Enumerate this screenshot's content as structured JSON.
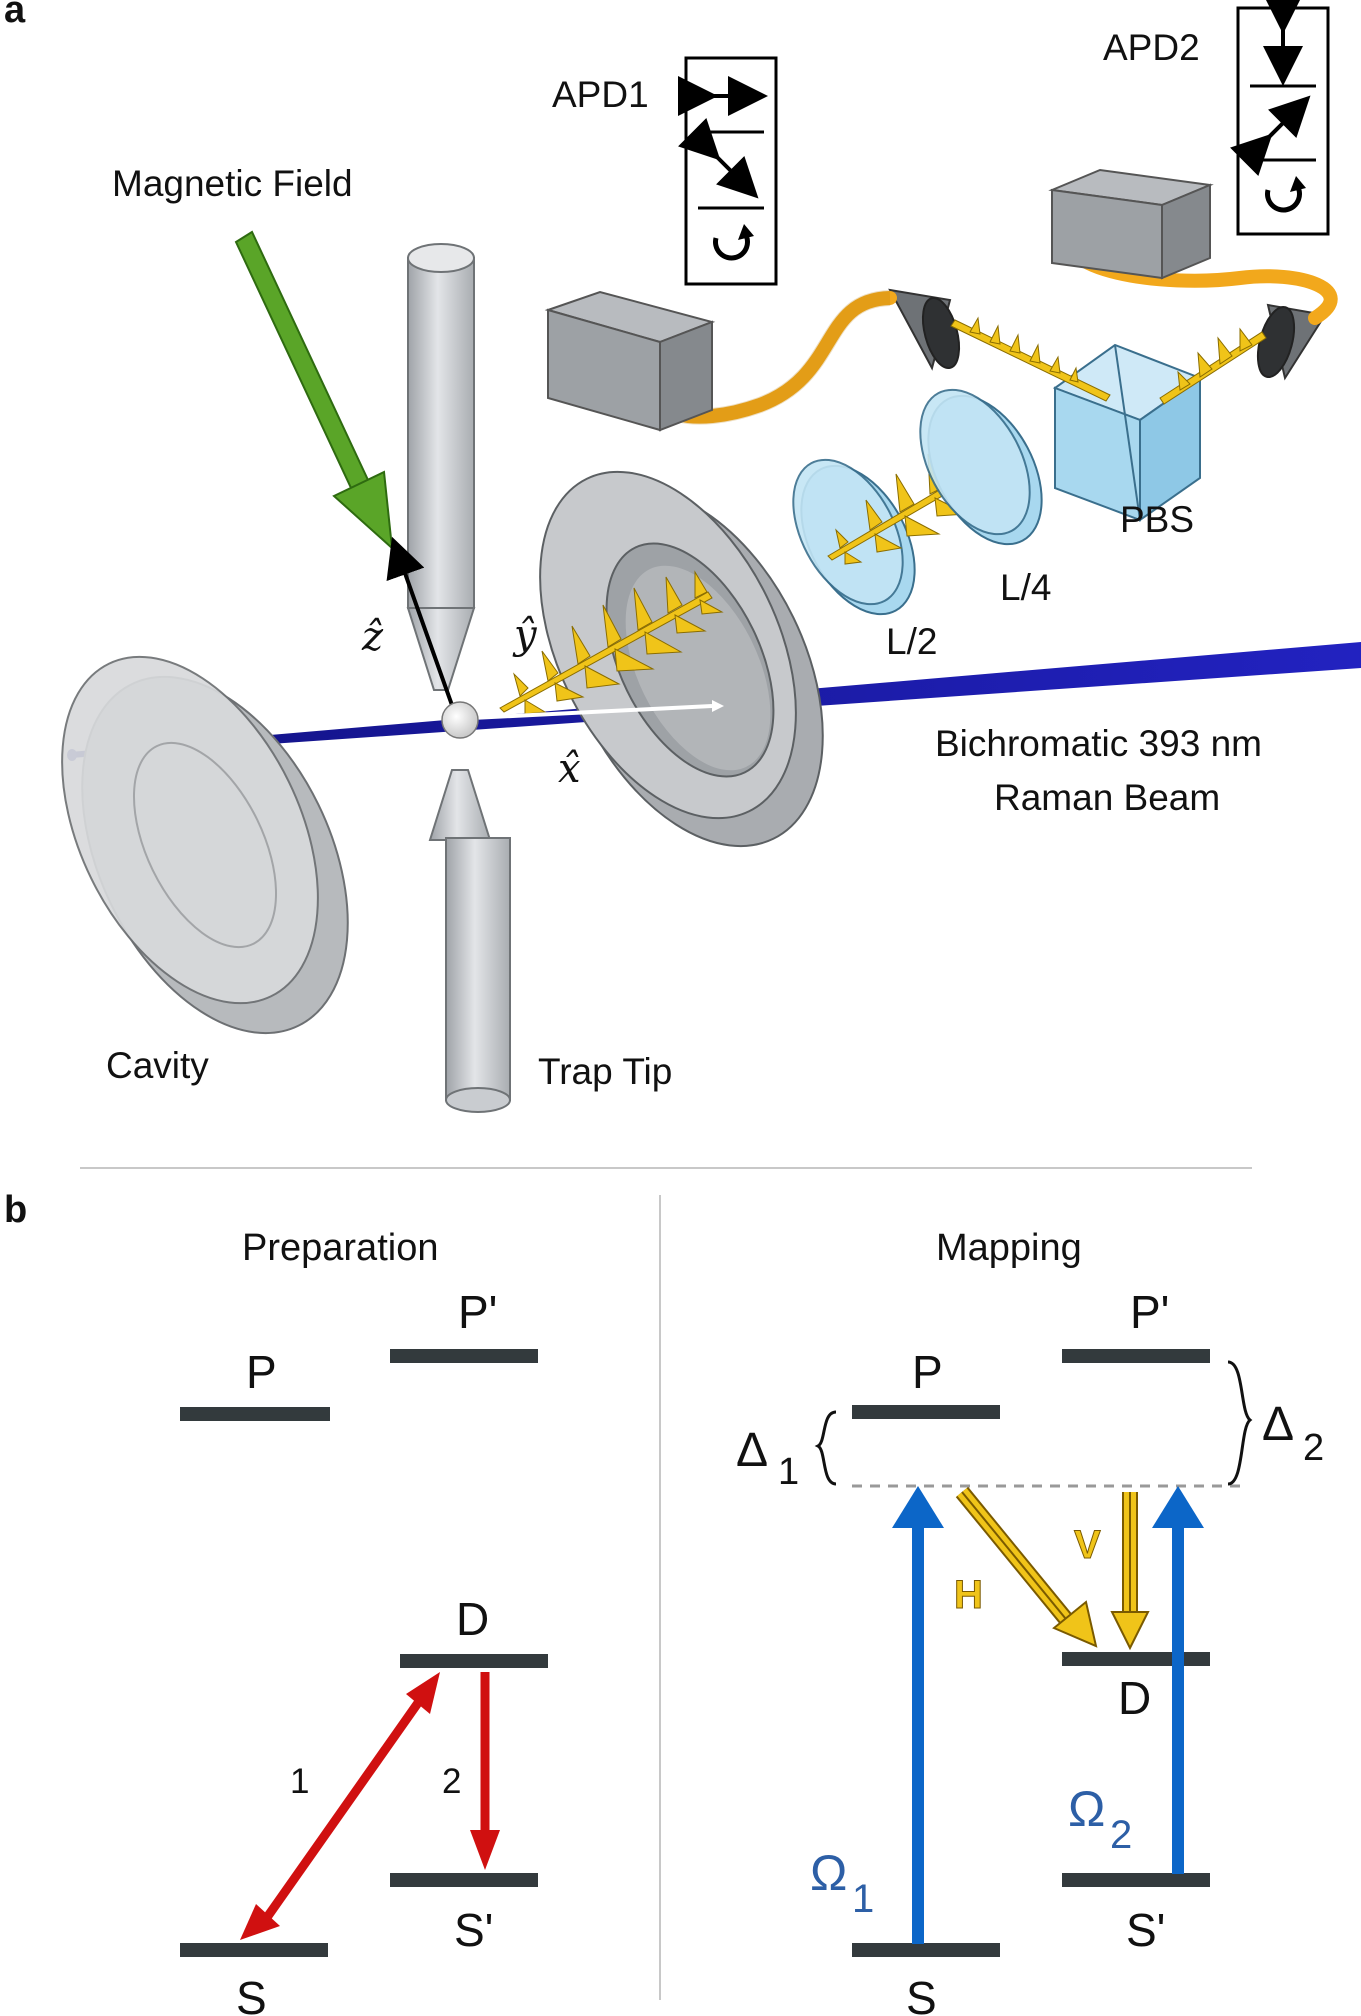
{
  "panel_a": {
    "label": "a",
    "magnetic_field": "Magnetic Field",
    "apd1": "APD1",
    "apd2": "APD2",
    "pbs": "PBS",
    "l4": "L/4",
    "l2": "L/2",
    "beam_line1": "Bichromatic 393 nm",
    "beam_line2": "Raman Beam",
    "cavity": "Cavity",
    "trap_tip": "Trap Tip",
    "axis_z": "ẑ",
    "axis_y": "ŷ",
    "axis_x": "x̂",
    "apd_symbols": [
      "↔",
      "↘",
      "↻"
    ],
    "apd2_symbols": [
      "↕",
      "↗",
      "↻"
    ]
  },
  "panel_b": {
    "label": "b",
    "preparation": {
      "title": "Preparation",
      "levels": [
        "P",
        "P'",
        "D",
        "S",
        "S'"
      ],
      "arrow_labels": [
        "1",
        "2"
      ]
    },
    "mapping": {
      "title": "Mapping",
      "levels": [
        "P",
        "P'",
        "D",
        "S",
        "S'"
      ],
      "delta1": "Δ",
      "delta1_sub": "1",
      "delta2": "Δ",
      "delta2_sub": "2",
      "omega1": "Ω",
      "omega1_sub": "1",
      "omega2": "Ω",
      "omega2_sub": "2",
      "h_label": "H",
      "v_label": "V"
    }
  },
  "colors": {
    "beam": "#1a1aa8",
    "field_arrow": "#5aa528",
    "fiber": "#f2a81c",
    "photon": "#f0c419",
    "wave_plate": "#a8d8ef",
    "level": "#333a3d",
    "prep_arrow": "#d01010",
    "pump_arrow": "#0c66c8",
    "rabi_text": "#2d5fa6",
    "photon_arrow": "#f0c419"
  }
}
